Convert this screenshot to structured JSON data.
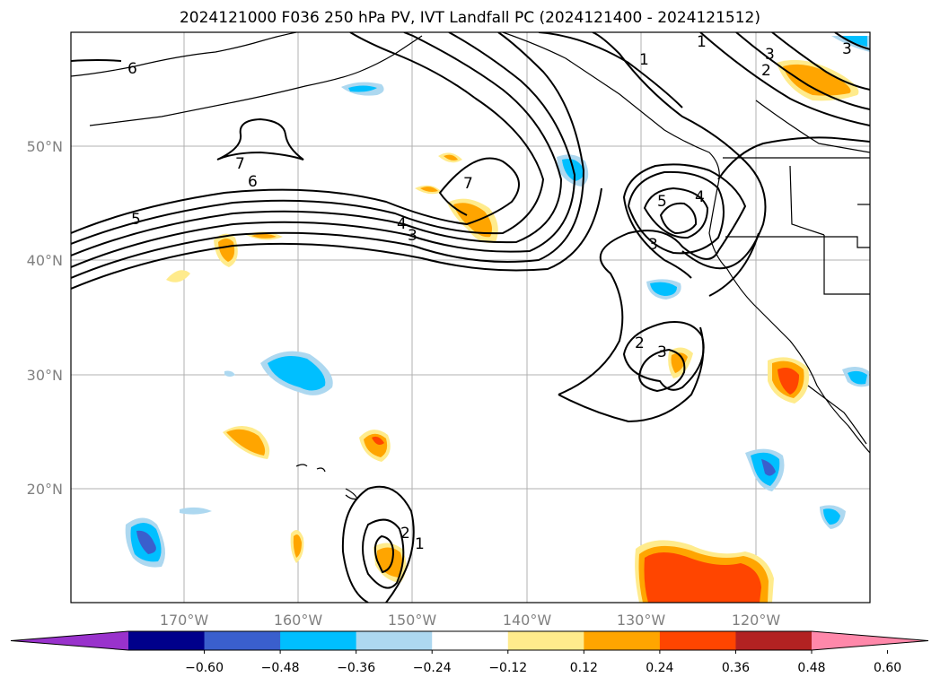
{
  "title": "2024121000 F036 250 hPa PV, IVT Landfall PC (2024121400 - 2024121512)",
  "lat_labels": [
    "50°N",
    "40°N",
    "30°N",
    "20°N"
  ],
  "lon_labels": [
    "170°W",
    "160°W",
    "150°W",
    "140°W",
    "130°W",
    "120°W"
  ],
  "contour_labels": [
    "6",
    "7",
    "6",
    "5",
    "4",
    "3",
    "7",
    "1",
    "1",
    "3",
    "2",
    "5",
    "4",
    "3",
    "2",
    "3",
    "2",
    "1",
    "3"
  ],
  "colorbar": {
    "ticks": [
      "−0.60",
      "−0.48",
      "−0.36",
      "−0.24",
      "−0.12",
      "0.12",
      "0.24",
      "0.36",
      "0.48",
      "0.60"
    ],
    "colors": [
      "#9932cc",
      "#00008b",
      "#3a5fcd",
      "#00bfff",
      "#add8f0",
      "#ffffff",
      "#ffeb8c",
      "#ffa500",
      "#ff4500",
      "#b22222",
      "#ff88aa"
    ]
  }
}
